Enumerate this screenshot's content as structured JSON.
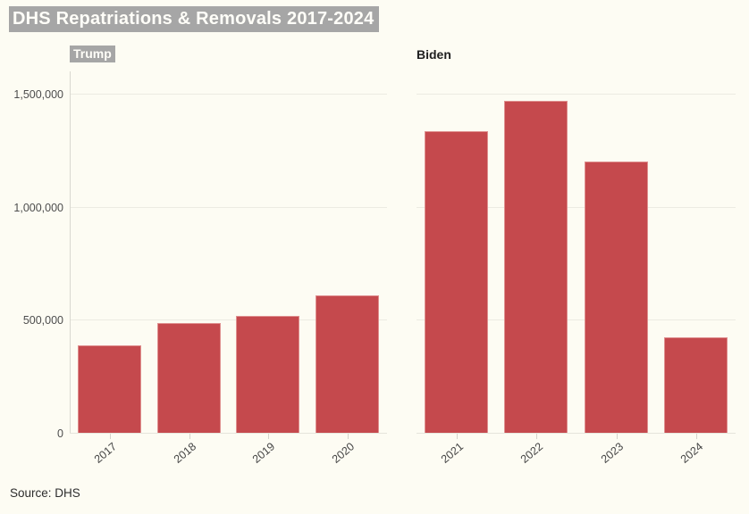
{
  "chart_data": {
    "type": "bar",
    "title": "DHS Repatriations & Removals 2017-2024",
    "source": "Source: DHS",
    "ylabel": "",
    "xlabel": "",
    "ylim": [
      0,
      1500000
    ],
    "grid": true,
    "legend": "none",
    "bar_color": "#c5494d",
    "yticks": [
      {
        "value": 0,
        "label": "0"
      },
      {
        "value": 500000,
        "label": "500,000"
      },
      {
        "value": 1000000,
        "label": "1,000,000"
      },
      {
        "value": 1500000,
        "label": "1,500,000"
      }
    ],
    "panels": [
      {
        "label": "Trump",
        "label_highlighted": true,
        "categories": [
          "2017",
          "2018",
          "2019",
          "2020"
        ],
        "values": [
          385000,
          487000,
          519000,
          606000
        ]
      },
      {
        "label": "Biden",
        "label_highlighted": false,
        "categories": [
          "2021",
          "2022",
          "2023",
          "2024"
        ],
        "values": [
          1335000,
          1468000,
          1200000,
          424000
        ]
      }
    ]
  }
}
